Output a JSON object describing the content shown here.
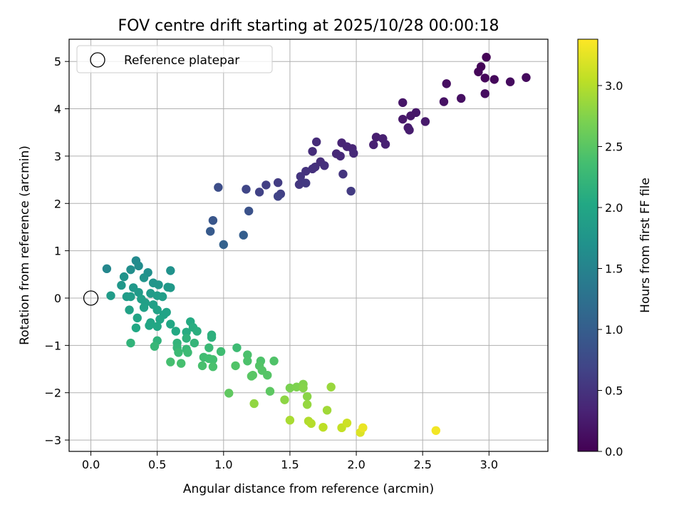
{
  "chart_data": {
    "type": "scatter",
    "title": "FOV centre drift starting at 2025/10/28 00:00:18",
    "xlabel": "Angular distance from reference (arcmin)",
    "ylabel": "Rotation from reference (arcmin)",
    "xlim": [
      -0.164,
      3.444
    ],
    "ylim": [
      -3.24,
      5.47
    ],
    "xticks": [
      0.0,
      0.5,
      1.0,
      1.5,
      2.0,
      2.5,
      3.0
    ],
    "xtick_labels": [
      "0.0",
      "0.5",
      "1.0",
      "1.5",
      "2.0",
      "2.5",
      "3.0"
    ],
    "yticks": [
      -3,
      -2,
      -1,
      0,
      1,
      2,
      3,
      4,
      5
    ],
    "ytick_labels": [
      "−3",
      "−2",
      "−1",
      "0",
      "1",
      "2",
      "3",
      "4",
      "5"
    ],
    "grid": true,
    "legend": {
      "position": "top-left",
      "label": "Reference platepar"
    },
    "reference_point": {
      "x": 0.0,
      "y": 0.0
    },
    "colorbar": {
      "label": "Hours from first FF file",
      "range": [
        0.0,
        3.38
      ],
      "ticks": [
        0.0,
        0.5,
        1.0,
        1.5,
        2.0,
        2.5,
        3.0
      ],
      "tick_labels": [
        "0.0",
        "0.5",
        "1.0",
        "1.5",
        "2.0",
        "2.5",
        "3.0"
      ],
      "colormap": "viridis"
    },
    "points": [
      {
        "x": 2.98,
        "y": 5.09,
        "t": 0.02
      },
      {
        "x": 2.94,
        "y": 4.89,
        "t": 0.03
      },
      {
        "x": 2.92,
        "y": 4.78,
        "t": 0.05
      },
      {
        "x": 2.97,
        "y": 4.65,
        "t": 0.06
      },
      {
        "x": 3.04,
        "y": 4.62,
        "t": 0.07
      },
      {
        "x": 3.28,
        "y": 4.66,
        "t": 0.09
      },
      {
        "x": 3.16,
        "y": 4.57,
        "t": 0.1
      },
      {
        "x": 2.97,
        "y": 4.32,
        "t": 0.11
      },
      {
        "x": 2.68,
        "y": 4.53,
        "t": 0.13
      },
      {
        "x": 2.79,
        "y": 4.22,
        "t": 0.14
      },
      {
        "x": 2.66,
        "y": 4.15,
        "t": 0.16
      },
      {
        "x": 2.35,
        "y": 4.13,
        "t": 0.19
      },
      {
        "x": 2.45,
        "y": 3.92,
        "t": 0.21
      },
      {
        "x": 2.41,
        "y": 3.85,
        "t": 0.22
      },
      {
        "x": 2.35,
        "y": 3.78,
        "t": 0.23
      },
      {
        "x": 2.52,
        "y": 3.73,
        "t": 0.24
      },
      {
        "x": 2.39,
        "y": 3.6,
        "t": 0.26
      },
      {
        "x": 2.4,
        "y": 3.55,
        "t": 0.27
      },
      {
        "x": 2.15,
        "y": 3.4,
        "t": 0.28
      },
      {
        "x": 2.2,
        "y": 3.37,
        "t": 0.3
      },
      {
        "x": 2.13,
        "y": 3.24,
        "t": 0.31
      },
      {
        "x": 2.22,
        "y": 3.25,
        "t": 0.32
      },
      {
        "x": 1.89,
        "y": 3.28,
        "t": 0.34
      },
      {
        "x": 1.93,
        "y": 3.2,
        "t": 0.35
      },
      {
        "x": 1.97,
        "y": 3.16,
        "t": 0.36
      },
      {
        "x": 1.85,
        "y": 3.05,
        "t": 0.38
      },
      {
        "x": 1.88,
        "y": 3.0,
        "t": 0.39
      },
      {
        "x": 1.98,
        "y": 3.06,
        "t": 0.4
      },
      {
        "x": 1.7,
        "y": 3.3,
        "t": 0.42
      },
      {
        "x": 1.67,
        "y": 3.1,
        "t": 0.43
      },
      {
        "x": 1.73,
        "y": 2.88,
        "t": 0.44
      },
      {
        "x": 1.69,
        "y": 2.77,
        "t": 0.46
      },
      {
        "x": 1.76,
        "y": 2.8,
        "t": 0.47
      },
      {
        "x": 1.67,
        "y": 2.73,
        "t": 0.48
      },
      {
        "x": 1.62,
        "y": 2.68,
        "t": 0.5
      },
      {
        "x": 1.9,
        "y": 2.62,
        "t": 0.51
      },
      {
        "x": 1.58,
        "y": 2.57,
        "t": 0.52
      },
      {
        "x": 1.59,
        "y": 2.45,
        "t": 0.54
      },
      {
        "x": 1.57,
        "y": 2.4,
        "t": 0.55
      },
      {
        "x": 1.62,
        "y": 2.43,
        "t": 0.56
      },
      {
        "x": 1.96,
        "y": 2.26,
        "t": 0.58
      },
      {
        "x": 1.41,
        "y": 2.44,
        "t": 0.6
      },
      {
        "x": 1.32,
        "y": 2.39,
        "t": 0.62
      },
      {
        "x": 1.43,
        "y": 2.2,
        "t": 0.64
      },
      {
        "x": 1.27,
        "y": 2.24,
        "t": 0.66
      },
      {
        "x": 1.41,
        "y": 2.15,
        "t": 0.68
      },
      {
        "x": 1.17,
        "y": 2.3,
        "t": 0.7
      },
      {
        "x": 0.96,
        "y": 2.34,
        "t": 0.8
      },
      {
        "x": 1.19,
        "y": 1.84,
        "t": 0.85
      },
      {
        "x": 0.92,
        "y": 1.64,
        "t": 0.9
      },
      {
        "x": 0.9,
        "y": 1.41,
        "t": 0.95
      },
      {
        "x": 1.15,
        "y": 1.33,
        "t": 1.0
      },
      {
        "x": 1.0,
        "y": 1.13,
        "t": 1.05
      },
      {
        "x": 0.12,
        "y": 0.62,
        "t": 1.55
      },
      {
        "x": 0.34,
        "y": 0.79,
        "t": 1.6
      },
      {
        "x": 0.36,
        "y": 0.68,
        "t": 1.62
      },
      {
        "x": 0.3,
        "y": 0.6,
        "t": 1.65
      },
      {
        "x": 0.43,
        "y": 0.54,
        "t": 1.68
      },
      {
        "x": 0.6,
        "y": 0.58,
        "t": 1.7
      },
      {
        "x": 0.25,
        "y": 0.45,
        "t": 1.72
      },
      {
        "x": 0.4,
        "y": 0.43,
        "t": 1.73
      },
      {
        "x": 0.47,
        "y": 0.32,
        "t": 1.75
      },
      {
        "x": 0.51,
        "y": 0.28,
        "t": 1.76
      },
      {
        "x": 0.23,
        "y": 0.27,
        "t": 1.78
      },
      {
        "x": 0.32,
        "y": 0.22,
        "t": 1.79
      },
      {
        "x": 0.58,
        "y": 0.23,
        "t": 1.8
      },
      {
        "x": 0.6,
        "y": 0.22,
        "t": 1.81
      },
      {
        "x": 0.36,
        "y": 0.12,
        "t": 1.82
      },
      {
        "x": 0.45,
        "y": 0.1,
        "t": 1.83
      },
      {
        "x": 0.15,
        "y": 0.05,
        "t": 1.84
      },
      {
        "x": 0.27,
        "y": 0.03,
        "t": 1.85
      },
      {
        "x": 0.3,
        "y": 0.03,
        "t": 1.86
      },
      {
        "x": 0.5,
        "y": 0.05,
        "t": 1.87
      },
      {
        "x": 0.54,
        "y": 0.03,
        "t": 1.88
      },
      {
        "x": 0.38,
        "y": -0.02,
        "t": 1.89
      },
      {
        "x": 0.41,
        "y": -0.1,
        "t": 1.9
      },
      {
        "x": 0.47,
        "y": -0.14,
        "t": 1.91
      },
      {
        "x": 0.4,
        "y": -0.2,
        "t": 1.92
      },
      {
        "x": 0.29,
        "y": -0.25,
        "t": 1.93
      },
      {
        "x": 0.5,
        "y": -0.25,
        "t": 1.94
      },
      {
        "x": 0.57,
        "y": -0.3,
        "t": 1.95
      },
      {
        "x": 0.55,
        "y": -0.35,
        "t": 1.96
      },
      {
        "x": 0.35,
        "y": -0.42,
        "t": 1.97
      },
      {
        "x": 0.52,
        "y": -0.45,
        "t": 1.98
      },
      {
        "x": 0.45,
        "y": -0.52,
        "t": 1.99
      },
      {
        "x": 0.44,
        "y": -0.58,
        "t": 2.0
      },
      {
        "x": 0.5,
        "y": -0.6,
        "t": 2.01
      },
      {
        "x": 0.6,
        "y": -0.55,
        "t": 2.02
      },
      {
        "x": 0.34,
        "y": -0.63,
        "t": 2.03
      },
      {
        "x": 0.64,
        "y": -0.7,
        "t": 2.04
      },
      {
        "x": 0.75,
        "y": -0.5,
        "t": 2.06
      },
      {
        "x": 0.72,
        "y": -0.72,
        "t": 2.08
      },
      {
        "x": 0.77,
        "y": -0.62,
        "t": 2.1
      },
      {
        "x": 0.8,
        "y": -0.7,
        "t": 2.12
      },
      {
        "x": 0.91,
        "y": -0.78,
        "t": 2.14
      },
      {
        "x": 0.91,
        "y": -0.83,
        "t": 2.15
      },
      {
        "x": 0.72,
        "y": -0.85,
        "t": 2.17
      },
      {
        "x": 0.5,
        "y": -0.9,
        "t": 2.18
      },
      {
        "x": 0.3,
        "y": -0.95,
        "t": 2.19
      },
      {
        "x": 0.65,
        "y": -0.95,
        "t": 2.2
      },
      {
        "x": 0.78,
        "y": -0.95,
        "t": 2.22
      },
      {
        "x": 0.65,
        "y": -1.05,
        "t": 2.23
      },
      {
        "x": 0.48,
        "y": -1.02,
        "t": 2.24
      },
      {
        "x": 0.72,
        "y": -1.08,
        "t": 2.26
      },
      {
        "x": 0.89,
        "y": -1.05,
        "t": 2.28
      },
      {
        "x": 0.66,
        "y": -1.15,
        "t": 2.29
      },
      {
        "x": 0.73,
        "y": -1.15,
        "t": 2.3
      },
      {
        "x": 1.1,
        "y": -1.05,
        "t": 2.31
      },
      {
        "x": 0.98,
        "y": -1.13,
        "t": 2.33
      },
      {
        "x": 0.85,
        "y": -1.25,
        "t": 2.34
      },
      {
        "x": 0.89,
        "y": -1.28,
        "t": 2.35
      },
      {
        "x": 0.92,
        "y": -1.3,
        "t": 2.36
      },
      {
        "x": 0.6,
        "y": -1.35,
        "t": 2.37
      },
      {
        "x": 0.68,
        "y": -1.38,
        "t": 2.38
      },
      {
        "x": 0.84,
        "y": -1.43,
        "t": 2.39
      },
      {
        "x": 0.92,
        "y": -1.45,
        "t": 2.4
      },
      {
        "x": 1.18,
        "y": -1.2,
        "t": 2.41
      },
      {
        "x": 1.18,
        "y": -1.33,
        "t": 2.42
      },
      {
        "x": 1.28,
        "y": -1.33,
        "t": 2.43
      },
      {
        "x": 1.38,
        "y": -1.33,
        "t": 2.44
      },
      {
        "x": 1.09,
        "y": -1.43,
        "t": 2.45
      },
      {
        "x": 1.27,
        "y": -1.43,
        "t": 2.46
      },
      {
        "x": 1.29,
        "y": -1.53,
        "t": 2.47
      },
      {
        "x": 1.33,
        "y": -1.63,
        "t": 2.48
      },
      {
        "x": 1.22,
        "y": -1.63,
        "t": 2.49
      },
      {
        "x": 1.21,
        "y": -1.65,
        "t": 2.5
      },
      {
        "x": 1.35,
        "y": -1.97,
        "t": 2.52
      },
      {
        "x": 1.04,
        "y": -2.01,
        "t": 2.54
      },
      {
        "x": 1.5,
        "y": -1.9,
        "t": 2.7
      },
      {
        "x": 1.55,
        "y": -1.88,
        "t": 2.72
      },
      {
        "x": 1.6,
        "y": -1.82,
        "t": 2.74
      },
      {
        "x": 1.6,
        "y": -1.9,
        "t": 2.76
      },
      {
        "x": 1.63,
        "y": -2.08,
        "t": 2.78
      },
      {
        "x": 1.46,
        "y": -2.15,
        "t": 2.8
      },
      {
        "x": 1.23,
        "y": -2.23,
        "t": 2.82
      },
      {
        "x": 1.63,
        "y": -2.25,
        "t": 2.84
      },
      {
        "x": 1.81,
        "y": -1.88,
        "t": 2.86
      },
      {
        "x": 1.78,
        "y": -2.37,
        "t": 2.9
      },
      {
        "x": 1.5,
        "y": -2.58,
        "t": 2.94
      },
      {
        "x": 1.64,
        "y": -2.6,
        "t": 2.98
      },
      {
        "x": 1.66,
        "y": -2.65,
        "t": 3.0
      },
      {
        "x": 1.75,
        "y": -2.73,
        "t": 3.04
      },
      {
        "x": 1.89,
        "y": -2.74,
        "t": 3.08
      },
      {
        "x": 1.93,
        "y": -2.64,
        "t": 3.12
      },
      {
        "x": 2.03,
        "y": -2.84,
        "t": 3.2
      },
      {
        "x": 2.05,
        "y": -2.74,
        "t": 3.28
      },
      {
        "x": 2.6,
        "y": -2.8,
        "t": 3.32
      }
    ]
  }
}
